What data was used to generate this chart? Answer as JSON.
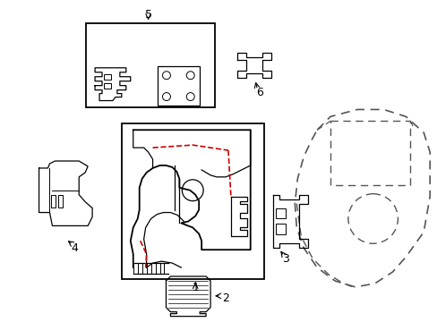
{
  "background_color": "#ffffff",
  "line_color": "#000000",
  "red_line_color": "#cc0000",
  "dashed_color": "#555555",
  "figsize": [
    4.89,
    3.6
  ],
  "dpi": 100
}
